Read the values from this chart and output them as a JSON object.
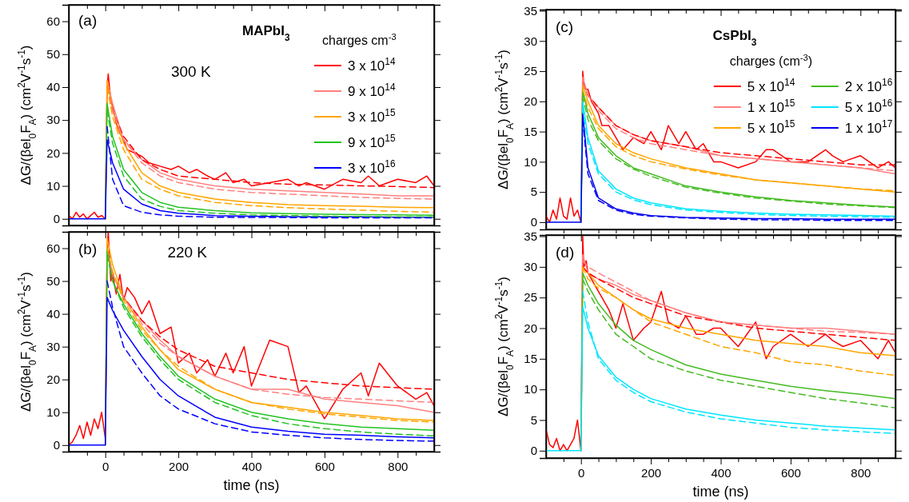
{
  "chart_data": [
    {
      "type": "line",
      "title": "MAPbI$_{3}$",
      "annotations": [
        "(a)",
        "300 K"
      ],
      "ylabel": "ΔG/(βel$_{0}$F$_{A}$) (cm$^{2}$V$^{-1}$s$^{-1}$)",
      "legend": "top right",
      "legend_title": "charges cm$^{-3}$",
      "tick_labels": "y",
      "xlim": [
        -100,
        900
      ],
      "ylim": [
        -2,
        65
      ],
      "xticks": [
        {
          "value": -50,
          "label": null
        },
        0,
        {
          "value": 50,
          "label": null
        },
        {
          "value": 100,
          "label": null
        },
        {
          "value": 150,
          "label": null
        },
        200,
        {
          "value": 250,
          "label": null
        },
        {
          "value": 300,
          "label": null
        },
        {
          "value": 350,
          "label": null
        },
        400,
        {
          "value": 450,
          "label": null
        },
        {
          "value": 500,
          "label": null
        },
        {
          "value": 550,
          "label": null
        },
        600,
        {
          "value": 650,
          "label": null
        },
        {
          "value": 700,
          "label": null
        },
        {
          "value": 750,
          "label": null
        },
        800,
        {
          "value": 850,
          "label": null
        }
      ],
      "yticks": [
        0,
        10,
        20,
        30,
        40,
        50,
        60
      ],
      "series": [
        {
          "name": "3 x 10$^{14}$",
          "color": "#ff0000",
          "x": [
            -100,
            -90,
            -80,
            -70,
            -60,
            -50,
            -40,
            -30,
            -20,
            -10,
            0,
            5,
            8,
            15,
            20,
            30,
            40,
            50,
            60,
            80,
            100,
            120,
            150,
            180,
            200,
            230,
            250,
            280,
            300,
            330,
            350,
            380,
            400,
            450,
            500,
            530,
            550,
            600,
            650,
            700,
            720,
            750,
            800,
            850,
            880,
            900
          ],
          "values": [
            1,
            0,
            2,
            0.5,
            1.5,
            0,
            1,
            2,
            0.5,
            1,
            0,
            40,
            44,
            36,
            34,
            29,
            26,
            24,
            21,
            20,
            19,
            17,
            16,
            15,
            16,
            14,
            15,
            13,
            12,
            14,
            11,
            12,
            10,
            11,
            12,
            10,
            11,
            9,
            12,
            11,
            13,
            10,
            12,
            11,
            13,
            10
          ]
        },
        {
          "name": "9 x 10$^{14}$",
          "color": "#ff8080",
          "x": [
            0,
            5,
            20,
            50,
            100,
            150,
            200,
            300,
            400,
            500,
            600,
            700,
            800,
            900
          ],
          "values": [
            0,
            42,
            35,
            24,
            18,
            14,
            12,
            10,
            9,
            8.5,
            8,
            7.5,
            7,
            7
          ]
        },
        {
          "name": "3 x 10$^{15}$",
          "color": "#ffa500",
          "x": [
            0,
            5,
            20,
            50,
            100,
            150,
            200,
            300,
            400,
            500,
            600,
            700,
            800,
            900
          ],
          "values": [
            0,
            42,
            33,
            23,
            14,
            10,
            8,
            6,
            5,
            4.3,
            4,
            3.8,
            3.5,
            3.4
          ]
        },
        {
          "name": "9 x 10$^{15}$",
          "color": "#22c322",
          "x": [
            0,
            5,
            20,
            50,
            100,
            150,
            200,
            300,
            400,
            500,
            600,
            700,
            800,
            900
          ],
          "values": [
            0,
            35,
            25,
            15,
            8,
            5,
            3.5,
            2.5,
            1.8,
            1.6,
            1.4,
            1.3,
            1.2,
            1.1
          ]
        },
        {
          "name": "3 x 10$^{16}$",
          "color": "#0000ff",
          "x": [
            -100,
            -50,
            0,
            5,
            20,
            50,
            100,
            150,
            200,
            300,
            400,
            500,
            600,
            700,
            800,
            900
          ],
          "values": [
            0,
            0,
            0,
            24,
            17,
            9,
            4.5,
            2.5,
            1.7,
            1,
            0.8,
            0.7,
            0.6,
            0.6,
            0.5,
            0.5
          ]
        },
        {
          "color": "#ff0000",
          "line_style": "dashed",
          "x": [
            5,
            20,
            50,
            100,
            150,
            200,
            300,
            400,
            500,
            600,
            700,
            800,
            900
          ],
          "values": [
            40,
            33,
            25,
            18,
            15,
            13,
            12,
            11,
            10.5,
            10.3,
            10,
            9.8,
            9.5
          ]
        },
        {
          "color": "#ff8080",
          "line_style": "dashed",
          "x": [
            5,
            20,
            50,
            100,
            150,
            200,
            300,
            400,
            500,
            600,
            700,
            800,
            900
          ],
          "values": [
            40,
            33,
            24,
            17,
            13,
            11,
            9,
            8,
            7.5,
            7,
            6.5,
            6.2,
            6
          ]
        },
        {
          "color": "#ffa500",
          "line_style": "dashed",
          "x": [
            5,
            20,
            50,
            100,
            150,
            200,
            300,
            400,
            500,
            600,
            700,
            800,
            900
          ],
          "values": [
            40,
            31,
            21,
            12,
            9,
            7,
            5,
            4,
            3.4,
            3,
            2.6,
            2.3,
            2
          ]
        },
        {
          "color": "#22c322",
          "line_style": "dashed",
          "x": [
            5,
            20,
            50,
            100,
            150,
            200,
            300,
            400,
            500,
            600,
            700,
            800,
            900
          ],
          "values": [
            33,
            23,
            13,
            6,
            3.8,
            2.5,
            1.7,
            1.2,
            1,
            0.8,
            0.7,
            0.6,
            0.6
          ]
        },
        {
          "color": "#0000ff",
          "line_style": "dashed",
          "x": [
            5,
            20,
            50,
            100,
            150,
            200,
            300,
            400,
            500,
            600,
            700,
            800,
            900
          ],
          "values": [
            28,
            12,
            4,
            2,
            1.2,
            0.8,
            0.5,
            0.4,
            0.4,
            0.3,
            0.3,
            0.3,
            0.3
          ]
        }
      ]
    },
    {
      "type": "line",
      "annotations": [
        "(b)",
        "220 K"
      ],
      "xlabel": "time (ns)",
      "ylabel": "ΔG/(βel$_{0}$F$_{A}$) (cm$^{2}$V$^{-1}$s$^{-1}$)",
      "xlim": [
        -100,
        900
      ],
      "ylim": [
        -2,
        65
      ],
      "xticks": [
        {
          "value": -50,
          "label": null
        },
        0,
        {
          "value": 50,
          "label": null
        },
        {
          "value": 100,
          "label": null
        },
        {
          "value": 150,
          "label": null
        },
        200,
        {
          "value": 250,
          "label": null
        },
        {
          "value": 300,
          "label": null
        },
        {
          "value": 350,
          "label": null
        },
        400,
        {
          "value": 450,
          "label": null
        },
        {
          "value": 500,
          "label": null
        },
        {
          "value": 550,
          "label": null
        },
        600,
        {
          "value": 650,
          "label": null
        },
        {
          "value": 700,
          "label": null
        },
        {
          "value": 750,
          "label": null
        },
        800,
        {
          "value": 850,
          "label": null
        }
      ],
      "yticks": [
        0,
        10,
        20,
        30,
        40,
        50,
        60
      ],
      "series": [
        {
          "color": "#ff0000",
          "x": [
            -100,
            -90,
            -80,
            -70,
            -60,
            -50,
            -40,
            -30,
            -20,
            -10,
            0,
            5,
            8,
            15,
            20,
            30,
            40,
            50,
            60,
            80,
            100,
            120,
            150,
            180,
            200,
            230,
            250,
            280,
            300,
            330,
            350,
            380,
            400,
            450,
            500,
            530,
            550,
            600,
            650,
            700,
            720,
            750,
            800,
            850,
            880,
            900
          ],
          "values": [
            0,
            1,
            3,
            6,
            2,
            7,
            3,
            8,
            5,
            10,
            2,
            60,
            65,
            50,
            52,
            46,
            52,
            44,
            48,
            45,
            40,
            44,
            34,
            36,
            25,
            28,
            22,
            26,
            21,
            28,
            22,
            30,
            18,
            32,
            30,
            16,
            18,
            8,
            17,
            22,
            15,
            25,
            18,
            14,
            16,
            12
          ]
        },
        {
          "color": "#ff8080",
          "x": [
            0,
            5,
            20,
            50,
            100,
            150,
            200,
            300,
            400,
            500,
            600,
            700,
            800,
            900
          ],
          "values": [
            0,
            60,
            52,
            45,
            38,
            32,
            27,
            21,
            17,
            17,
            14,
            13,
            12,
            10
          ]
        },
        {
          "color": "#ffa500",
          "x": [
            0,
            5,
            20,
            50,
            100,
            150,
            200,
            300,
            400,
            500,
            600,
            700,
            800,
            900
          ],
          "values": [
            0,
            63,
            55,
            45,
            36,
            29,
            23,
            17,
            13,
            11.5,
            10,
            9,
            8,
            7.5
          ]
        },
        {
          "color": "#22c322",
          "x": [
            0,
            5,
            20,
            50,
            100,
            150,
            200,
            300,
            400,
            500,
            600,
            700,
            800,
            900
          ],
          "values": [
            0,
            60,
            50,
            43,
            34,
            27,
            21,
            14,
            10,
            8,
            6.5,
            5.5,
            5,
            4.5
          ]
        },
        {
          "color": "#0000ff",
          "x": [
            -100,
            -50,
            0,
            5,
            20,
            50,
            100,
            150,
            200,
            300,
            400,
            500,
            600,
            700,
            800,
            900
          ],
          "values": [
            0,
            0,
            0,
            45,
            41,
            35,
            27,
            20,
            15,
            8.5,
            5.5,
            4.2,
            3.3,
            3,
            2.5,
            2.2
          ]
        },
        {
          "color": "#ff0000",
          "line_style": "dashed",
          "x": [
            5,
            20,
            50,
            100,
            150,
            200,
            300,
            400,
            500,
            600,
            700,
            800,
            900
          ],
          "values": [
            58,
            52,
            45,
            38,
            33,
            29,
            24,
            22,
            20,
            19,
            18,
            17.5,
            17
          ]
        },
        {
          "color": "#ff8080",
          "line_style": "dashed",
          "x": [
            5,
            20,
            50,
            100,
            150,
            200,
            300,
            400,
            500,
            600,
            700,
            800,
            900
          ],
          "values": [
            58,
            52,
            45,
            37,
            31,
            27,
            21,
            17,
            15.5,
            14.5,
            14,
            13.5,
            13
          ]
        },
        {
          "color": "#ffa500",
          "line_style": "dashed",
          "x": [
            5,
            20,
            50,
            100,
            150,
            200,
            300,
            400,
            500,
            600,
            700,
            800,
            900
          ],
          "values": [
            60,
            53,
            44,
            35,
            29,
            24,
            17,
            13,
            11,
            9.5,
            8.5,
            7.5,
            7
          ]
        },
        {
          "color": "#22c322",
          "line_style": "dashed",
          "x": [
            5,
            20,
            50,
            100,
            150,
            200,
            300,
            400,
            500,
            600,
            700,
            800,
            900
          ],
          "values": [
            58,
            50,
            42,
            33,
            26,
            20,
            13,
            9,
            6.5,
            5,
            4,
            3.3,
            2.8
          ]
        },
        {
          "color": "#0000ff",
          "line_style": "dashed",
          "x": [
            5,
            20,
            50,
            100,
            150,
            200,
            300,
            400,
            500,
            600,
            700,
            800,
            900
          ],
          "values": [
            50,
            42,
            30,
            22,
            15,
            11,
            6.5,
            4,
            3,
            2.2,
            1.7,
            1.4,
            1.2
          ]
        }
      ]
    },
    {
      "type": "line",
      "title": "CsPbI$_{3}$",
      "annotations": [
        "(c)"
      ],
      "ylabel": "ΔG/(βel$_{0}$F$_{A}$) (cm$^{2}$V$^{-1}$s$^{-1}$)",
      "legend": "top right",
      "legend_title": "charges (cm$^{-3}$)",
      "tick_labels": "y",
      "xlim": [
        -100,
        900
      ],
      "ylim": [
        -1.2,
        35.2
      ],
      "xticks": [
        {
          "value": -50,
          "label": null
        },
        0,
        {
          "value": 50,
          "label": null
        },
        {
          "value": 100,
          "label": null
        },
        {
          "value": 150,
          "label": null
        },
        200,
        {
          "value": 250,
          "label": null
        },
        {
          "value": 300,
          "label": null
        },
        {
          "value": 350,
          "label": null
        },
        400,
        {
          "value": 450,
          "label": null
        },
        {
          "value": 500,
          "label": null
        },
        {
          "value": 550,
          "label": null
        },
        600,
        {
          "value": 650,
          "label": null
        },
        {
          "value": 700,
          "label": null
        },
        {
          "value": 750,
          "label": null
        },
        800,
        {
          "value": 850,
          "label": null
        }
      ],
      "yticks": [
        0,
        5,
        10,
        15,
        20,
        25,
        30,
        35
      ],
      "series": [
        {
          "name": "5 x 10$^{14}$",
          "color": "#ff0000",
          "x": [
            -100,
            -90,
            -80,
            -70,
            -60,
            -50,
            -40,
            -30,
            -20,
            -10,
            0,
            5,
            8,
            15,
            20,
            30,
            40,
            50,
            60,
            80,
            100,
            120,
            150,
            180,
            200,
            230,
            250,
            280,
            300,
            330,
            350,
            380,
            400,
            450,
            500,
            530,
            550,
            600,
            650,
            700,
            720,
            750,
            800,
            850,
            880,
            900
          ],
          "values": [
            1,
            0,
            2,
            0.5,
            4,
            1,
            0.5,
            4,
            1,
            2,
            0,
            25,
            23,
            22,
            22,
            20,
            19,
            18,
            16,
            16,
            14,
            12,
            14,
            13,
            15,
            12,
            16,
            13,
            15,
            12,
            13,
            10,
            10,
            9,
            10,
            12,
            12,
            10,
            10,
            12,
            11,
            10,
            11,
            9,
            10,
            9
          ]
        },
        {
          "name": "1 x 10$^{15}$",
          "color": "#ff8080",
          "x": [
            0,
            5,
            20,
            50,
            100,
            150,
            200,
            300,
            400,
            500,
            600,
            700,
            800,
            900
          ],
          "values": [
            0,
            24,
            21,
            19,
            16,
            14.5,
            13.5,
            12.5,
            11,
            10.5,
            10,
            9.5,
            9,
            8
          ]
        },
        {
          "name": "5 x 10$^{15}$",
          "color": "#ffa500",
          "x": [
            0,
            5,
            20,
            50,
            100,
            150,
            200,
            300,
            400,
            500,
            600,
            700,
            800,
            900
          ],
          "values": [
            0,
            23,
            20,
            16,
            13,
            11.5,
            10.5,
            9,
            8,
            7,
            6.5,
            6,
            5.5,
            5
          ]
        },
        {
          "name": "2 x 10$^{16}$",
          "color": "#44bb22",
          "x": [
            0,
            5,
            20,
            50,
            100,
            150,
            200,
            300,
            400,
            500,
            600,
            700,
            800,
            900
          ],
          "values": [
            0,
            22,
            18,
            14,
            11,
            9,
            8,
            6,
            5,
            4.2,
            3.6,
            3.2,
            2.8,
            2.5
          ]
        },
        {
          "name": "5 x 10$^{16}$",
          "color": "#00e5ff",
          "x": [
            0,
            5,
            20,
            50,
            100,
            150,
            200,
            300,
            400,
            500,
            600,
            700,
            800,
            900
          ],
          "values": [
            0,
            20,
            14,
            8.5,
            5.5,
            4,
            3.2,
            2.2,
            1.8,
            1.5,
            1.3,
            1.2,
            1.1,
            1
          ]
        },
        {
          "name": "1 x 10$^{17}$",
          "color": "#0000ee",
          "x": [
            -100,
            -50,
            0,
            5,
            20,
            50,
            100,
            150,
            200,
            300,
            400,
            500,
            600,
            700,
            800,
            900
          ],
          "values": [
            0,
            0,
            0,
            18,
            9,
            4,
            2.2,
            1.5,
            1.1,
            0.8,
            0.7,
            0.6,
            0.6,
            0.5,
            0.5,
            0.5
          ]
        },
        {
          "color": "#ff0000",
          "line_style": "dashed",
          "x": [
            5,
            20,
            50,
            100,
            150,
            200,
            300,
            400,
            500,
            600,
            700,
            800,
            900
          ],
          "values": [
            23,
            21,
            19,
            16,
            14.5,
            13.5,
            12.5,
            11.5,
            11,
            10.5,
            10,
            9.5,
            9.5
          ]
        },
        {
          "color": "#ff8080",
          "line_style": "dashed",
          "x": [
            5,
            20,
            50,
            100,
            150,
            200,
            300,
            400,
            500,
            600,
            700,
            800,
            900
          ],
          "values": [
            23,
            21,
            18.5,
            15.5,
            14,
            13,
            12,
            11,
            10.5,
            10,
            9.5,
            9,
            8.5
          ]
        },
        {
          "color": "#ffa500",
          "line_style": "dashed",
          "x": [
            5,
            20,
            50,
            100,
            150,
            200,
            300,
            400,
            500,
            600,
            700,
            800,
            900
          ],
          "values": [
            22,
            19,
            15.5,
            12.5,
            11,
            10,
            8.8,
            7.8,
            7,
            6.5,
            6,
            5.5,
            5.2
          ]
        },
        {
          "color": "#44bb22",
          "line_style": "dashed",
          "x": [
            5,
            20,
            50,
            100,
            150,
            200,
            300,
            400,
            500,
            600,
            700,
            800,
            900
          ],
          "values": [
            21,
            17,
            13.5,
            10.5,
            8.8,
            7.6,
            5.8,
            4.8,
            4,
            3.5,
            3,
            2.7,
            2.4
          ]
        },
        {
          "color": "#00e5ff",
          "line_style": "dashed",
          "x": [
            5,
            20,
            50,
            100,
            150,
            200,
            300,
            400,
            500,
            600,
            700,
            800,
            900
          ],
          "values": [
            19,
            13,
            8,
            5,
            3.7,
            2.9,
            2,
            1.6,
            1.3,
            1.1,
            1,
            0.9,
            0.8
          ]
        },
        {
          "color": "#0000ee",
          "line_style": "dashed",
          "x": [
            5,
            20,
            50,
            100,
            150,
            200,
            300,
            400,
            500,
            600,
            700,
            800,
            900
          ],
          "values": [
            17,
            8,
            3.6,
            2,
            1.3,
            1,
            0.7,
            0.5,
            0.4,
            0.4,
            0.3,
            0.3,
            0.3
          ]
        }
      ]
    },
    {
      "type": "line",
      "annotations": [
        "(d)"
      ],
      "xlabel": "time (ns)",
      "ylabel": "ΔG/(βel$_{0}$F$_{A}$) (cm$^{2}$V$^{-1}$s$^{-1}$)",
      "xlim": [
        -100,
        900
      ],
      "ylim": [
        -1.2,
        35.2
      ],
      "xticks": [
        {
          "value": -50,
          "label": null
        },
        0,
        {
          "value": 50,
          "label": null
        },
        {
          "value": 100,
          "label": null
        },
        {
          "value": 150,
          "label": null
        },
        200,
        {
          "value": 250,
          "label": null
        },
        {
          "value": 300,
          "label": null
        },
        {
          "value": 350,
          "label": null
        },
        400,
        {
          "value": 450,
          "label": null
        },
        {
          "value": 500,
          "label": null
        },
        {
          "value": 550,
          "label": null
        },
        600,
        {
          "value": 650,
          "label": null
        },
        {
          "value": 700,
          "label": null
        },
        {
          "value": 750,
          "label": null
        },
        800,
        {
          "value": 850,
          "label": null
        }
      ],
      "yticks": [
        0,
        5,
        10,
        15,
        20,
        25,
        30,
        35
      ],
      "series": [
        {
          "color": "#ff0000",
          "x": [
            -100,
            -90,
            -80,
            -70,
            -60,
            -50,
            -40,
            -30,
            -20,
            -10,
            0,
            5,
            8,
            15,
            20,
            30,
            40,
            50,
            60,
            80,
            100,
            120,
            150,
            180,
            200,
            230,
            250,
            280,
            300,
            330,
            350,
            380,
            400,
            450,
            500,
            530,
            550,
            600,
            650,
            700,
            720,
            750,
            800,
            850,
            880,
            900
          ],
          "values": [
            3.5,
            1,
            0.5,
            2,
            0,
            1,
            0,
            1,
            2,
            5,
            0,
            35,
            30,
            31,
            29,
            28,
            27,
            26,
            25,
            23,
            20,
            24,
            18,
            20,
            21,
            26,
            21,
            20,
            22,
            19,
            19,
            20,
            20,
            17,
            21,
            15,
            17,
            19,
            17,
            19,
            18,
            17,
            18,
            15,
            18,
            16
          ]
        },
        {
          "color": "#ff8080",
          "x": [
            0,
            5,
            20,
            50,
            100,
            150,
            200,
            300,
            400,
            500,
            600,
            700,
            800,
            900
          ],
          "values": [
            0,
            32,
            29,
            28,
            27,
            25.5,
            24.5,
            22.5,
            21,
            20.5,
            20,
            20,
            19.5,
            19
          ]
        },
        {
          "color": "#ffa500",
          "x": [
            0,
            5,
            20,
            50,
            100,
            150,
            200,
            300,
            400,
            500,
            600,
            700,
            800,
            900
          ],
          "values": [
            0,
            30,
            29,
            27,
            25,
            23,
            21.5,
            20,
            19,
            18,
            17.5,
            17,
            16,
            15.5
          ]
        },
        {
          "color": "#44bb22",
          "x": [
            0,
            5,
            20,
            50,
            100,
            150,
            200,
            300,
            400,
            500,
            600,
            700,
            800,
            900
          ],
          "values": [
            0,
            29,
            27,
            24,
            20.5,
            18,
            16.5,
            14,
            12.5,
            11.5,
            10.5,
            9.8,
            9.2,
            8.5
          ]
        },
        {
          "color": "#00e5ff",
          "x": [
            -100,
            -50,
            0,
            5,
            20,
            50,
            100,
            150,
            200,
            300,
            400,
            500,
            600,
            700,
            800,
            900
          ],
          "values": [
            0,
            0,
            0,
            23.5,
            20,
            15.5,
            12,
            10,
            8.5,
            6.8,
            5.8,
            5,
            4.5,
            4,
            3.7,
            3.4
          ]
        },
        {
          "color": "#ff0000",
          "line_style": "dashed",
          "x": [
            5,
            20,
            50,
            100,
            150,
            200,
            300,
            400,
            500,
            600,
            700,
            800,
            900
          ],
          "values": [
            30,
            29,
            28,
            26.5,
            25,
            24,
            22,
            21,
            20,
            19.5,
            19,
            18.5,
            18
          ]
        },
        {
          "color": "#ff8080",
          "line_style": "dashed",
          "x": [
            5,
            20,
            50,
            100,
            150,
            200,
            300,
            400,
            500,
            600,
            700,
            800,
            900
          ],
          "values": [
            31,
            30,
            29,
            27.5,
            26,
            24.5,
            22.5,
            21,
            20.5,
            20,
            19.5,
            19.3,
            19
          ]
        },
        {
          "color": "#ffa500",
          "line_style": "dashed",
          "x": [
            5,
            20,
            50,
            100,
            150,
            200,
            300,
            400,
            500,
            600,
            700,
            800,
            900
          ],
          "values": [
            30,
            28,
            26.5,
            25,
            23,
            21,
            19,
            17,
            16,
            14.5,
            14,
            13,
            12.3
          ]
        },
        {
          "color": "#44bb22",
          "line_style": "dashed",
          "x": [
            5,
            20,
            50,
            100,
            150,
            200,
            300,
            400,
            500,
            600,
            700,
            800,
            900
          ],
          "values": [
            28,
            26,
            23,
            19,
            17,
            15,
            13,
            11.5,
            10.5,
            9.5,
            8.5,
            7.8,
            7
          ]
        },
        {
          "color": "#00e5ff",
          "line_style": "dashed",
          "x": [
            5,
            20,
            50,
            100,
            150,
            200,
            300,
            400,
            500,
            600,
            700,
            800,
            900
          ],
          "values": [
            26,
            21,
            15,
            11.5,
            9.5,
            8,
            6.3,
            5.2,
            4.5,
            3.8,
            3.4,
            3.1,
            2.8
          ]
        }
      ]
    }
  ]
}
